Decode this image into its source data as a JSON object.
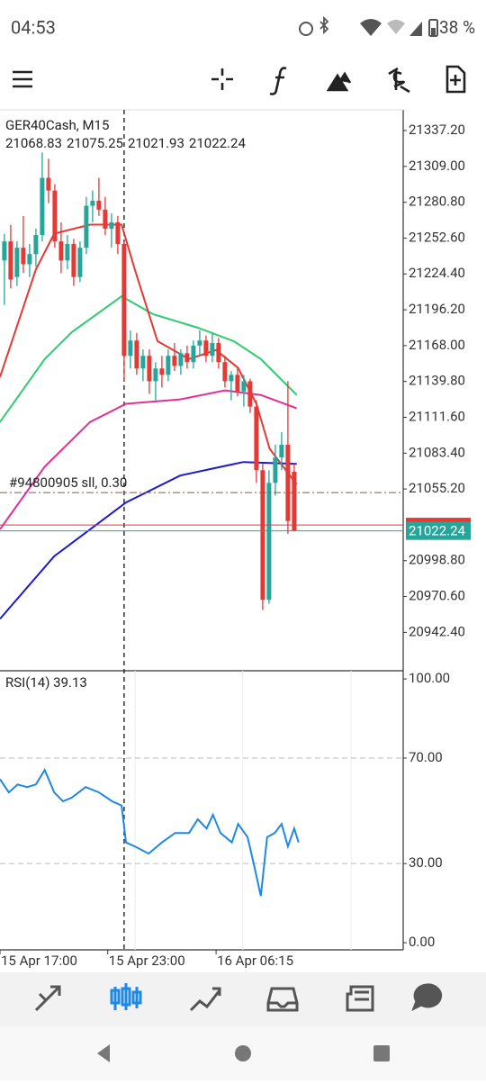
{
  "status_bar": {
    "time": "04:53",
    "battery": "38 %"
  },
  "chart_data": [
    {
      "type": "candlestick",
      "title": "GER40Cash, M15",
      "xlim": [
        -0.7,
        63.3
      ],
      "ylim": [
        20912.2,
        21353.5
      ],
      "yticks": [
        {
          "value": 21337.2,
          "label": "21337.20"
        },
        {
          "value": 21309.0,
          "label": "21309.00"
        },
        {
          "value": 21280.8,
          "label": "21280.80"
        },
        {
          "value": 21252.6,
          "label": "21252.60"
        },
        {
          "value": 21224.4,
          "label": "21224.40"
        },
        {
          "value": 21196.2,
          "label": "21196.20"
        },
        {
          "value": 21168.0,
          "label": "21168.00"
        },
        {
          "value": 21139.8,
          "label": "21139.80"
        },
        {
          "value": 21111.6,
          "label": "21111.60"
        },
        {
          "value": 21083.4,
          "label": "21083.40"
        },
        {
          "value": 21055.2,
          "label": "21055.20"
        },
        {
          "value": 20998.8,
          "label": "20998.80"
        },
        {
          "value": 20970.6,
          "label": "20970.60"
        },
        {
          "value": 20942.4,
          "label": "20942.40"
        }
      ],
      "xticks": [
        {
          "value": -0.7,
          "label": "15 Apr 17:00"
        },
        {
          "value": 16.4,
          "label": "15 Apr 23:00"
        },
        {
          "value": 33.6,
          "label": "16 Apr 06:15"
        }
      ],
      "separator_x": 19,
      "up_color": "#26a69a",
      "down_color": "#e53935",
      "candles": [
        {
          "o": 21235,
          "h": 21256,
          "l": 21200,
          "c": 21250
        },
        {
          "o": 21250,
          "h": 21263,
          "l": 21213,
          "c": 21220
        },
        {
          "o": 21222,
          "h": 21250,
          "l": 21215,
          "c": 21245
        },
        {
          "o": 21245,
          "h": 21270,
          "l": 21225,
          "c": 21232
        },
        {
          "o": 21232,
          "h": 21248,
          "l": 21222,
          "c": 21240
        },
        {
          "o": 21240,
          "h": 21260,
          "l": 21230,
          "c": 21255
        },
        {
          "o": 21255,
          "h": 21320,
          "l": 21250,
          "c": 21300
        },
        {
          "o": 21300,
          "h": 21315,
          "l": 21280,
          "c": 21290
        },
        {
          "o": 21290,
          "h": 21295,
          "l": 21245,
          "c": 21250
        },
        {
          "o": 21250,
          "h": 21265,
          "l": 21225,
          "c": 21235
        },
        {
          "o": 21235,
          "h": 21255,
          "l": 21228,
          "c": 21248
        },
        {
          "o": 21248,
          "h": 21252,
          "l": 21215,
          "c": 21222
        },
        {
          "o": 21222,
          "h": 21250,
          "l": 21218,
          "c": 21245
        },
        {
          "o": 21245,
          "h": 21285,
          "l": 21240,
          "c": 21278
        },
        {
          "o": 21278,
          "h": 21290,
          "l": 21265,
          "c": 21282
        },
        {
          "o": 21282,
          "h": 21300,
          "l": 21270,
          "c": 21275
        },
        {
          "o": 21275,
          "h": 21285,
          "l": 21255,
          "c": 21260
        },
        {
          "o": 21260,
          "h": 21272,
          "l": 21245,
          "c": 21265
        },
        {
          "o": 21265,
          "h": 21270,
          "l": 21240,
          "c": 21248
        },
        {
          "o": 21248,
          "h": 21250,
          "l": 21140,
          "c": 21160
        },
        {
          "o": 21160,
          "h": 21180,
          "l": 21150,
          "c": 21172
        },
        {
          "o": 21172,
          "h": 21178,
          "l": 21145,
          "c": 21150
        },
        {
          "o": 21150,
          "h": 21165,
          "l": 21140,
          "c": 21160
        },
        {
          "o": 21160,
          "h": 21165,
          "l": 21130,
          "c": 21140
        },
        {
          "o": 21140,
          "h": 21155,
          "l": 21125,
          "c": 21150
        },
        {
          "o": 21150,
          "h": 21160,
          "l": 21135,
          "c": 21145
        },
        {
          "o": 21145,
          "h": 21165,
          "l": 21140,
          "c": 21160
        },
        {
          "o": 21160,
          "h": 21170,
          "l": 21148,
          "c": 21152
        },
        {
          "o": 21152,
          "h": 21165,
          "l": 21145,
          "c": 21162
        },
        {
          "o": 21162,
          "h": 21168,
          "l": 21150,
          "c": 21155
        },
        {
          "o": 21155,
          "h": 21172,
          "l": 21150,
          "c": 21168
        },
        {
          "o": 21168,
          "h": 21180,
          "l": 21160,
          "c": 21172
        },
        {
          "o": 21172,
          "h": 21176,
          "l": 21155,
          "c": 21160
        },
        {
          "o": 21160,
          "h": 21178,
          "l": 21155,
          "c": 21170
        },
        {
          "o": 21170,
          "h": 21174,
          "l": 21150,
          "c": 21155
        },
        {
          "o": 21155,
          "h": 21160,
          "l": 21135,
          "c": 21140
        },
        {
          "o": 21140,
          "h": 21148,
          "l": 21125,
          "c": 21145
        },
        {
          "o": 21145,
          "h": 21150,
          "l": 21128,
          "c": 21132
        },
        {
          "o": 21132,
          "h": 21145,
          "l": 21120,
          "c": 21140
        },
        {
          "o": 21140,
          "h": 21142,
          "l": 21115,
          "c": 21120
        },
        {
          "o": 21120,
          "h": 21125,
          "l": 21060,
          "c": 21070
        },
        {
          "o": 21070,
          "h": 21075,
          "l": 20960,
          "c": 20968
        },
        {
          "o": 20968,
          "h": 21070,
          "l": 20965,
          "c": 21060
        },
        {
          "o": 21060,
          "h": 21090,
          "l": 21050,
          "c": 21080
        },
        {
          "o": 21080,
          "h": 21100,
          "l": 21070,
          "c": 21090
        },
        {
          "o": 21090,
          "h": 21140,
          "l": 21020,
          "c": 21030
        },
        {
          "o": 21068.83,
          "h": 21075.25,
          "l": 21021.93,
          "c": 21022.24
        }
      ],
      "series": [
        {
          "color": "#2ecc71",
          "x": [
            -0.7,
            6.4,
            10.7,
            18.6,
            23.6,
            30.7,
            36.4,
            40.7,
            46.4
          ],
          "values": [
            21107.9,
            21157.4,
            21178.6,
            21206.8,
            21192.7,
            21182.1,
            21171.5,
            21157.4,
            21129.2
          ]
        },
        {
          "color": "#e0309a",
          "x": [
            -0.7,
            6.4,
            13.6,
            19.3,
            27.9,
            35,
            40.7,
            46.4
          ],
          "values": [
            21023.5,
            21072.8,
            21107.9,
            21122.2,
            21125.7,
            21132.8,
            21129.2,
            21118.7
          ]
        },
        {
          "color": "#1a1ad0",
          "x": [
            -0.7,
            7.9,
            19.3,
            27.9,
            37.9,
            46.4
          ],
          "values": [
            20953.0,
            21002.3,
            21044.6,
            21065.8,
            21076.4,
            21075.0
          ]
        },
        {
          "color": "#e53935",
          "x": [
            -0.7,
            5,
            7.9,
            13.6,
            18.6,
            20.7,
            24.3,
            29.3,
            33.6,
            37.1,
            40,
            42.1,
            46.4
          ],
          "values": [
            21143.3,
            21227.9,
            21256.1,
            21263.2,
            21263.2,
            21227.9,
            21171.5,
            21157.4,
            21164.5,
            21150.4,
            21122.2,
            21086.9,
            21058.7
          ]
        }
      ],
      "order_line": {
        "value": 21052.4,
        "label": "#94800905 sll, 0.30",
        "color": "#a0522d"
      },
      "ask_line": {
        "value": 21026.9,
        "color": "#e53935"
      },
      "bid_color": "#26a69a"
    },
    {
      "type": "line",
      "title": "RSI(14) 39.13",
      "xlim": [
        -0.7,
        63.3
      ],
      "ylim": [
        -2.7,
        103.1
      ],
      "yticks": [
        {
          "value": 100,
          "label": "100.00"
        },
        {
          "value": 70,
          "label": "70.00"
        },
        {
          "value": 30,
          "label": "30.00"
        },
        {
          "value": 0,
          "label": "0.00"
        }
      ],
      "series": [
        {
          "color": "#1e88e5",
          "x": [
            -0.7,
            0.7,
            2.1,
            3.6,
            5,
            6.4,
            7.9,
            9.3,
            10.7,
            12.9,
            15,
            17.1,
            18.6,
            19.3,
            20.7,
            22.9,
            25,
            27.1,
            29.3,
            30.7,
            32.1,
            33.1,
            34.3,
            36.1,
            37.1,
            38.6,
            39.6,
            40.7,
            41.7,
            42.9,
            44,
            45,
            46,
            46.7
          ],
          "values": [
            62,
            57,
            60,
            59,
            60,
            65.5,
            57,
            53.6,
            55,
            59,
            57,
            53.6,
            52,
            38,
            36.5,
            33.8,
            38,
            41.6,
            41.6,
            46.8,
            43.3,
            48.5,
            41.6,
            38,
            45,
            40,
            29.7,
            17.7,
            40,
            41.6,
            45,
            36.5,
            43.3,
            38
          ]
        }
      ]
    }
  ]
}
